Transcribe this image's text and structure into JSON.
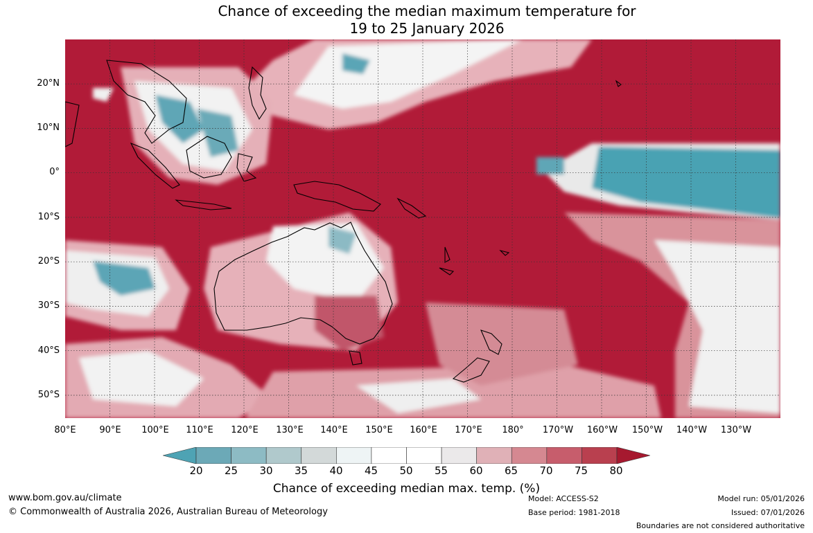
{
  "title": {
    "line1": "Chance of exceeding the median maximum temperature for",
    "line2": "19 to 25 January 2026"
  },
  "map": {
    "lat_labels": [
      "20°N",
      "10°N",
      "0°",
      "10°S",
      "20°S",
      "30°S",
      "40°S",
      "50°S"
    ],
    "lon_labels": [
      "80°E",
      "90°E",
      "100°E",
      "110°E",
      "120°E",
      "130°E",
      "140°E",
      "150°E",
      "160°E",
      "170°E",
      "180°",
      "170°W",
      "160°W",
      "150°W",
      "140°W",
      "130°W"
    ],
    "dominant_color": "#b11b38",
    "land_outline_color": "#000000"
  },
  "colorbar": {
    "ticks": [
      "20",
      "25",
      "30",
      "35",
      "40",
      "45",
      "50",
      "55",
      "60",
      "65",
      "70",
      "75",
      "80"
    ],
    "colors": [
      "#4ea3b4",
      "#6ca9b7",
      "#8dbbc4",
      "#b0c9cc",
      "#d3d9d9",
      "#eef4f5",
      "#ffffff",
      "#ffffff",
      "#ebe9ea",
      "#e0b1b7",
      "#d58891",
      "#c75d6c",
      "#b9404f",
      "#a6192f"
    ],
    "label": "Chance of exceeding median max. temp. (%)"
  },
  "footer": {
    "website": "www.bom.gov.au/climate",
    "copyright": "© Commonwealth of Australia 2026, Australian Bureau of Meteorology",
    "model": "Model: ACCESS-S2",
    "base_period": "Base period: 1981-2018",
    "model_run": "Model run: 05/01/2026",
    "issued": "Issued: 07/01/2026",
    "disclaimer": "Boundaries are not considered authoritative"
  }
}
